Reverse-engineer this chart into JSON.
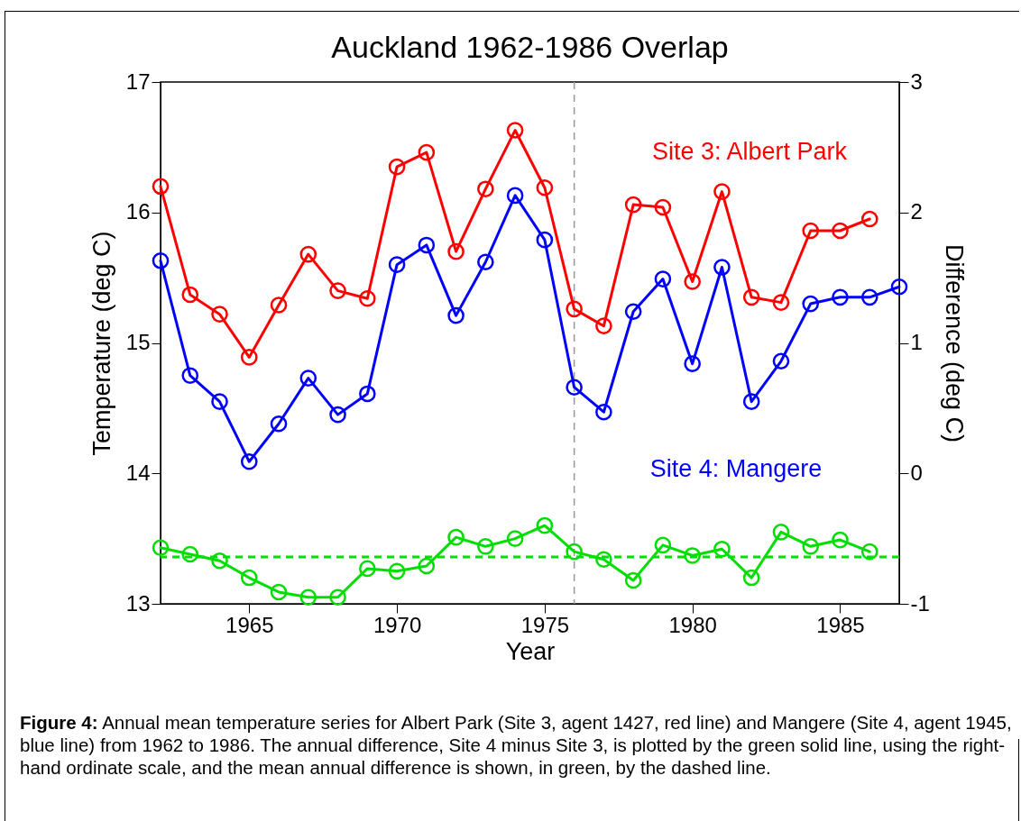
{
  "chart_data": {
    "type": "line",
    "title": "Auckland  1962-1986 Overlap",
    "xlabel": "Year",
    "ylabel": "Temperature (deg C)",
    "y2label": "Difference (deg C)",
    "x": [
      1962,
      1963,
      1964,
      1965,
      1966,
      1967,
      1968,
      1969,
      1970,
      1971,
      1972,
      1973,
      1974,
      1975,
      1976,
      1977,
      1978,
      1979,
      1980,
      1981,
      1982,
      1983,
      1984,
      1985,
      1986
    ],
    "series": [
      {
        "name": "Site 3: Albert Park",
        "color": "#ff0000",
        "values": [
          16.2,
          15.37,
          15.22,
          14.89,
          15.29,
          15.68,
          15.4,
          15.34,
          16.35,
          16.46,
          15.7,
          16.18,
          16.63,
          16.19,
          15.26,
          15.13,
          16.06,
          16.04,
          15.47,
          16.16,
          15.35,
          15.31,
          15.86,
          15.86,
          15.95
        ]
      },
      {
        "name": "Site 4: Mangere",
        "color": "#0000ff",
        "x": [
          1962,
          1963,
          1964,
          1965,
          1966,
          1967,
          1968,
          1969,
          1970,
          1971,
          1972,
          1973,
          1974,
          1975,
          1976,
          1977,
          1978,
          1979,
          1980,
          1981,
          1982,
          1983,
          1984,
          1985,
          1986,
          1987
        ],
        "values": [
          15.63,
          14.75,
          14.55,
          14.09,
          14.38,
          14.73,
          14.45,
          14.61,
          15.6,
          15.75,
          15.21,
          15.62,
          16.13,
          15.79,
          14.66,
          14.47,
          15.24,
          15.49,
          14.84,
          15.58,
          14.55,
          14.86,
          15.3,
          15.35,
          15.35,
          15.43
        ]
      },
      {
        "color": "#00dd00",
        "axis": "y2",
        "values": [
          -0.57,
          -0.62,
          -0.67,
          -0.8,
          -0.91,
          -0.95,
          -0.95,
          -0.73,
          -0.75,
          -0.71,
          -0.49,
          -0.56,
          -0.5,
          -0.4,
          -0.6,
          -0.66,
          -0.82,
          -0.55,
          -0.63,
          -0.58,
          -0.8,
          -0.45,
          -0.56,
          -0.51,
          -0.6
        ]
      }
    ],
    "xlim": [
      1962,
      1987
    ],
    "xticks": [
      1965,
      1970,
      1975,
      1980,
      1985
    ],
    "ylim": [
      13,
      17
    ],
    "yticks": [
      13,
      14,
      15,
      16,
      17
    ],
    "y2lim": [
      -1,
      3
    ],
    "y2ticks": [
      -1,
      0,
      1,
      2,
      3
    ],
    "ref_lines": [
      {
        "axis": "x",
        "value": 1976,
        "color": "#999999",
        "line_style": "dashed"
      },
      {
        "axis": "y2",
        "value": -0.64,
        "color": "#00dd00",
        "line_style": "dashed"
      }
    ],
    "marker": "circle",
    "grid": false,
    "annotations": [
      "Figure 4: Annual mean temperature series for Albert Park (Site 3, agent 1427, red line) and Mangere (Site 4, agent 1945, blue line) from 1962 to 1986. The annual difference, Site 4 minus Site 3, is plotted by the green solid line, using the right-hand ordinate scale, and the mean annual difference is shown, in green, by the dashed line."
    ]
  }
}
